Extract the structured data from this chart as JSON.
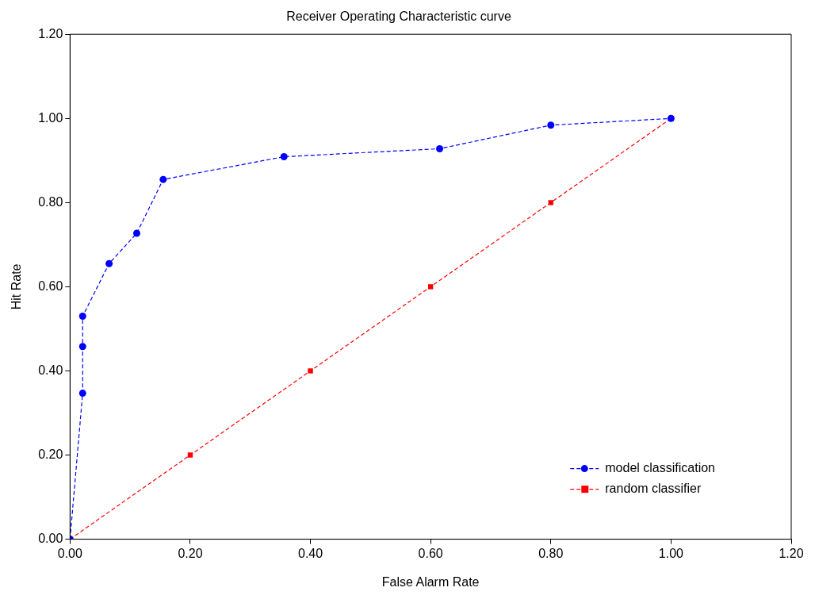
{
  "chart_data": {
    "type": "scatter",
    "title": "Receiver Operating Characteristic curve",
    "xlabel": "False Alarm Rate",
    "ylabel": "Hit Rate",
    "xlim": [
      0,
      1.2
    ],
    "ylim": [
      0,
      1.2
    ],
    "xticks": [
      {
        "value": 0,
        "label": "0.00"
      },
      {
        "value": 0.2,
        "label": "0.20"
      },
      {
        "value": 0.4,
        "label": "0.40"
      },
      {
        "value": 0.6,
        "label": "0.60"
      },
      {
        "value": 0.8,
        "label": "0.80"
      },
      {
        "value": 1,
        "label": "1.00"
      },
      {
        "value": 1.2,
        "label": "1.20"
      }
    ],
    "yticks": [
      {
        "value": 0,
        "label": "0.00"
      },
      {
        "value": 0.2,
        "label": "0.20"
      },
      {
        "value": 0.4,
        "label": "0.40"
      },
      {
        "value": 0.6,
        "label": "0.60"
      },
      {
        "value": 0.8,
        "label": "0.80"
      },
      {
        "value": 1,
        "label": "1.00"
      },
      {
        "value": 1.2,
        "label": "1.20"
      }
    ],
    "grid": false,
    "legend": "bottom right",
    "line_style": "dashed",
    "series": [
      {
        "name": "model classification",
        "type": "line",
        "color": "#0000ff",
        "marker": "circle",
        "x": [
          0,
          0.021,
          0.021,
          0.021,
          0.065,
          0.111,
          0.155,
          0.356,
          0.615,
          0.8,
          1
        ],
        "values": [
          0,
          0.347,
          0.458,
          0.53,
          0.655,
          0.727,
          0.855,
          0.909,
          0.928,
          0.984,
          1
        ]
      },
      {
        "name": "random classifier",
        "type": "line",
        "color": "#ff0000",
        "marker": "square",
        "x": [
          0,
          0.2,
          0.4,
          0.6,
          0.8,
          1
        ],
        "values": [
          0,
          0.2,
          0.4,
          0.6,
          0.8,
          1
        ]
      }
    ]
  }
}
